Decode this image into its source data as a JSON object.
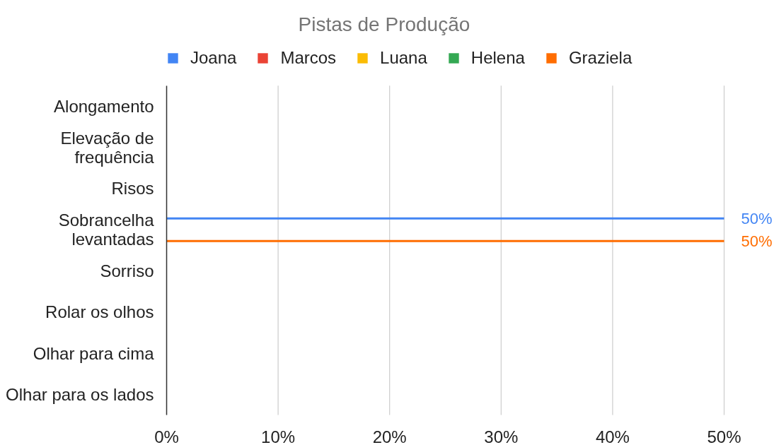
{
  "chart_data": {
    "type": "bar",
    "orientation": "horizontal",
    "title": "Pistas de Produção",
    "categories": [
      "Alongamento",
      "Elevação de frequência",
      "Risos",
      "Sobrancelha levantadas",
      "Sorriso",
      "Rolar os olhos",
      "Olhar para cima",
      "Olhar para os lados"
    ],
    "series": [
      {
        "name": "Joana",
        "color": "#4285f4",
        "values": [
          null,
          null,
          null,
          50,
          null,
          null,
          null,
          null
        ],
        "value_labels": [
          null,
          null,
          null,
          "50%",
          null,
          null,
          null,
          null
        ]
      },
      {
        "name": "Marcos",
        "color": "#ea4335",
        "values": [
          null,
          null,
          null,
          null,
          null,
          null,
          null,
          null
        ]
      },
      {
        "name": "Luana",
        "color": "#fbbc04",
        "values": [
          null,
          null,
          null,
          null,
          null,
          null,
          null,
          null
        ]
      },
      {
        "name": "Helena",
        "color": "#34a853",
        "values": [
          null,
          null,
          null,
          null,
          null,
          null,
          null,
          null
        ]
      },
      {
        "name": "Graziela",
        "color": "#ff6d01",
        "values": [
          null,
          null,
          null,
          50,
          null,
          null,
          null,
          null
        ],
        "value_labels": [
          null,
          null,
          null,
          "50%",
          null,
          null,
          null,
          null
        ]
      }
    ],
    "xlim": [
      0,
      50
    ],
    "xticks": [
      {
        "value": 0,
        "label": "0%"
      },
      {
        "value": 10,
        "label": "10%"
      },
      {
        "value": 20,
        "label": "20%"
      },
      {
        "value": 30,
        "label": "30%"
      },
      {
        "value": 40,
        "label": "40%"
      },
      {
        "value": 50,
        "label": "50%"
      }
    ],
    "grid": "x",
    "legend": "top"
  }
}
